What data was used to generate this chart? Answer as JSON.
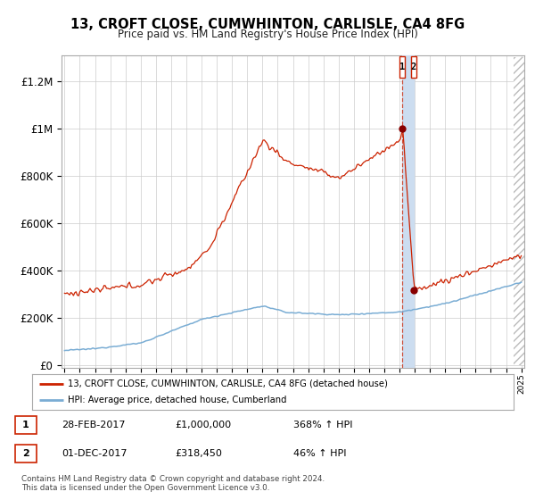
{
  "title": "13, CROFT CLOSE, CUMWHINTON, CARLISLE, CA4 8FG",
  "subtitle": "Price paid vs. HM Land Registry's House Price Index (HPI)",
  "legend_line1": "13, CROFT CLOSE, CUMWHINTON, CARLISLE, CA4 8FG (detached house)",
  "legend_line2": "HPI: Average price, detached house, Cumberland",
  "transaction1_date": "28-FEB-2017",
  "transaction1_price": "£1,000,000",
  "transaction1_pct": "368% ↑ HPI",
  "transaction2_date": "01-DEC-2017",
  "transaction2_price": "£318,450",
  "transaction2_pct": "46% ↑ HPI",
  "footer": "Contains HM Land Registry data © Crown copyright and database right 2024.\nThis data is licensed under the Open Government Licence v3.0.",
  "hpi_color": "#7aadd4",
  "price_color": "#cc2200",
  "marker_color": "#880000",
  "vline_color": "#cc2200",
  "vband_color": "#ccddf0",
  "bg_color": "#ffffff",
  "grid_color": "#cccccc",
  "ylabel_ticks": [
    "£0",
    "£200K",
    "£400K",
    "£600K",
    "£800K",
    "£1M",
    "£1.2M"
  ],
  "ytick_values": [
    0,
    200000,
    400000,
    600000,
    800000,
    1000000,
    1200000
  ],
  "xstart_year": 1995,
  "xend_year": 2025,
  "t1_year": 2017.17,
  "t1_price": 1000000,
  "t2_year": 2017.92,
  "t2_price": 318450
}
